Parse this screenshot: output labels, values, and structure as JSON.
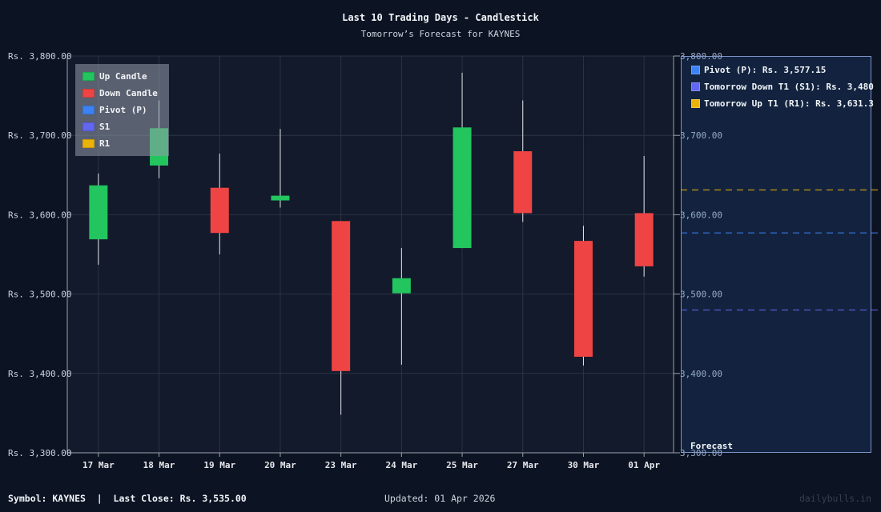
{
  "header": {
    "title": "Last 10 Trading Days - Candlestick",
    "subtitle": "Tomorrow’s Forecast for KAYNES"
  },
  "legend": {
    "items": [
      {
        "label": "Up Candle",
        "color": "#22c55e"
      },
      {
        "label": "Down Candle",
        "color": "#ef4444"
      },
      {
        "label": "Pivot (P)",
        "color": "#3b82f6"
      },
      {
        "label": "S1",
        "color": "#6366f1"
      },
      {
        "label": "R1",
        "color": "#eab308"
      }
    ]
  },
  "forecast_panel": {
    "label": "Forecast",
    "items": [
      {
        "label": "Pivot (P): Rs. 3,577.15",
        "color": "#3b82f6"
      },
      {
        "label": "Tomorrow Down T1 (S1): Rs. 3,480",
        "color": "#6366f1"
      },
      {
        "label": "Tomorrow Up T1 (R1): Rs. 3,631.3",
        "color": "#eab308"
      }
    ]
  },
  "footer": {
    "symbol_text": "Symbol: KAYNES  |  Last Close: Rs. 3,535.00",
    "updated_text": "Updated: 01 Apr 2026",
    "watermark": "dailybulls.in"
  },
  "colors": {
    "up": "#22c55e",
    "down": "#ef4444",
    "pivot": "#3b82f6",
    "s1": "#6366f1",
    "r1": "#eab308",
    "wick": "#e5e7eb",
    "grid": "#2a3444",
    "plot_bg": "#121a2b"
  },
  "chart_data": {
    "type": "candlestick",
    "title": "Last 10 Trading Days - Candlestick",
    "subtitle": "Tomorrow’s Forecast for KAYNES",
    "xlabel": "",
    "ylabel": "",
    "ylim": [
      3300,
      3800
    ],
    "yticks": [
      3300,
      3400,
      3500,
      3600,
      3700,
      3800
    ],
    "ytick_labels_left": [
      "Rs. 3,300.00",
      "Rs. 3,400.00",
      "Rs. 3,500.00",
      "Rs. 3,600.00",
      "Rs. 3,700.00",
      "Rs. 3,800.00"
    ],
    "ytick_labels_right": [
      "3,300.00",
      "3,400.00",
      "3,500.00",
      "3,600.00",
      "3,700.00",
      "3,800.00"
    ],
    "grid": true,
    "legend_position": "top-left",
    "categories": [
      "17 Mar",
      "18 Mar",
      "19 Mar",
      "20 Mar",
      "23 Mar",
      "24 Mar",
      "25 Mar",
      "27 Mar",
      "30 Mar",
      "01 Apr"
    ],
    "open": [
      3569,
      3662,
      3634,
      3618,
      3592,
      3501,
      3558,
      3680,
      3567,
      3602
    ],
    "high": [
      3652,
      3744,
      3677,
      3708,
      3592,
      3558,
      3779,
      3744,
      3586,
      3674
    ],
    "low": [
      3537,
      3646,
      3550,
      3609,
      3348,
      3411,
      3558,
      3591,
      3410,
      3522
    ],
    "close": [
      3637,
      3709,
      3577,
      3624,
      3403,
      3520,
      3710,
      3602,
      3421,
      3535
    ],
    "forecast_levels": [
      {
        "name": "Pivot (P)",
        "value": 3577.15
      },
      {
        "name": "S1",
        "value": 3480
      },
      {
        "name": "R1",
        "value": 3631.3
      }
    ],
    "last_close": 3535.0
  }
}
